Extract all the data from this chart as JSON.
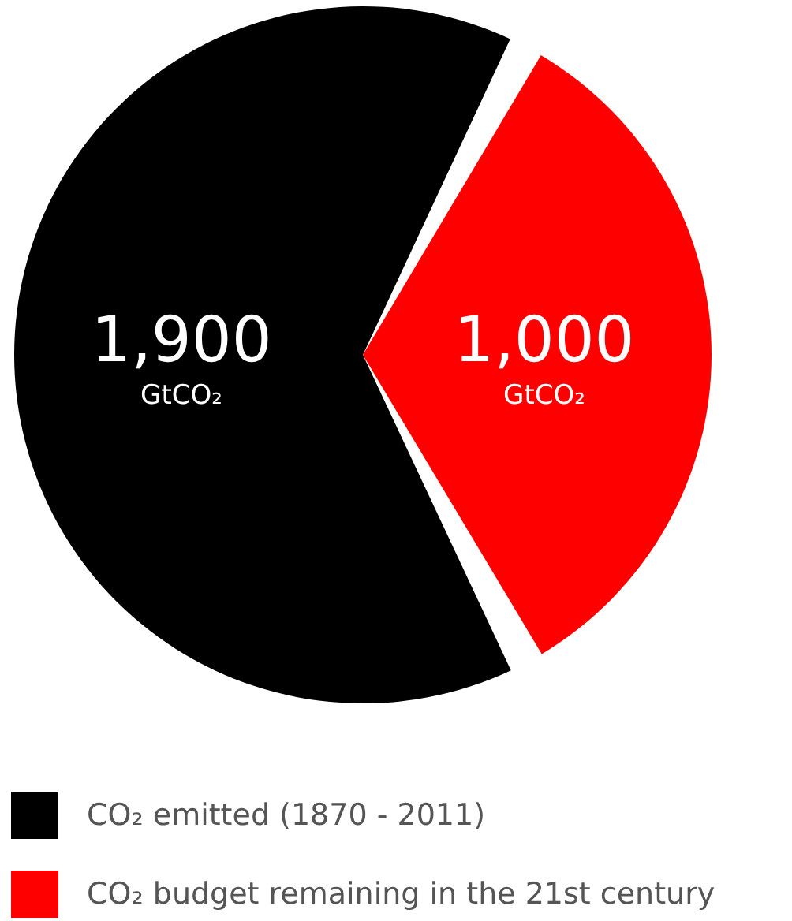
{
  "chart_data": {
    "type": "pie",
    "categories": [
      "CO₂ emitted (1870 - 2011)",
      "CO₂ budget remaining in the 21st century"
    ],
    "values": [
      1900,
      1000
    ],
    "colors": [
      "#000000",
      "#ff0000"
    ],
    "value_labels": [
      "1,900",
      "1,000"
    ],
    "annotations": [
      "GtCO₂",
      "GtCO₂"
    ],
    "legend": "bottom"
  }
}
